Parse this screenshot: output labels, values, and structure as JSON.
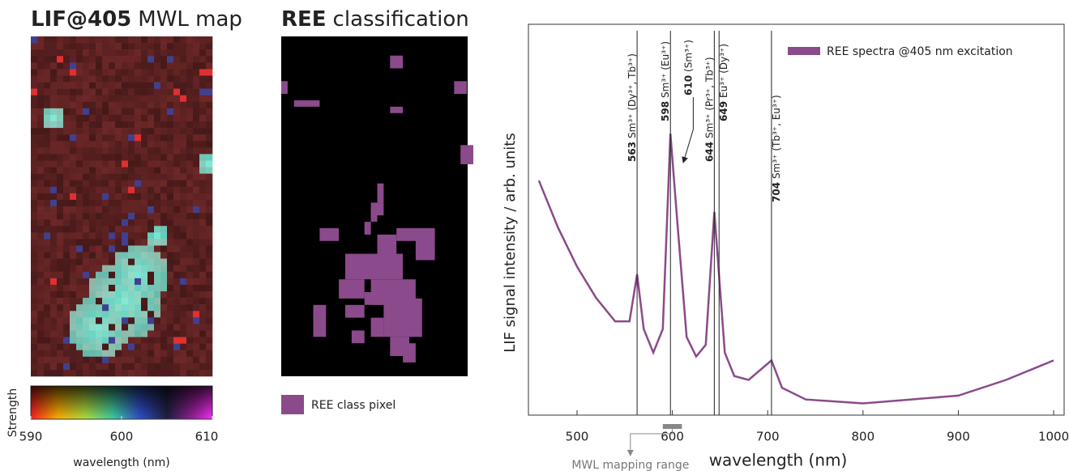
{
  "chart_data": [
    {
      "type": "heatmap",
      "title_bold": "LIF@405",
      "title": "MWL map",
      "colorbar_label": "Strength",
      "xlabel": "wavelength (nm)",
      "xlim": [
        590,
        610
      ],
      "xticks": [
        590,
        600,
        610
      ]
    },
    {
      "type": "classmap",
      "title_bold": "REE",
      "title": "classification",
      "legend": "REE class pixel",
      "color": "#8b4a8b"
    },
    {
      "type": "line",
      "xlabel": "wavelength (nm)",
      "ylabel": "LIF signal intensity / arb. units",
      "xlim": [
        449,
        1011
      ],
      "ylim": [
        0,
        100
      ],
      "xticks": [
        500,
        600,
        700,
        800,
        900,
        1000
      ],
      "legend_position": "upper right",
      "series": [
        {
          "name": "REE spectra @405 nm excitation",
          "color": "#8b4a8b",
          "x": [
            460,
            480,
            500,
            520,
            540,
            555,
            563,
            570,
            580,
            590,
            598,
            605,
            615,
            625,
            635,
            644,
            655,
            665,
            680,
            704,
            715,
            740,
            800,
            850,
            900,
            950,
            1000
          ],
          "values": [
            60,
            48,
            38,
            30,
            24,
            24,
            36,
            22,
            16,
            22,
            72,
            50,
            20,
            15,
            18,
            52,
            16,
            10,
            9,
            14,
            7,
            4,
            3,
            4,
            5,
            9,
            14
          ]
        }
      ],
      "annotations": [
        {
          "x": 563,
          "label": "Sm³⁺ (Dy³⁺, Tb³⁺)"
        },
        {
          "x": 598,
          "label": "Sm³⁺ (Eu³⁺)"
        },
        {
          "x": 610,
          "label": "(Sm³⁺)"
        },
        {
          "x": 644,
          "label": "Sm³⁺ (Pr³⁺, Tb³⁺)"
        },
        {
          "x": 649,
          "label": "Eu³⁺ (Dy³⁺)"
        },
        {
          "x": 704,
          "label": "Sm³⁺ (Tb³⁺, Eu³⁺)"
        }
      ],
      "mwl_range": [
        590,
        610
      ],
      "mwl_label": "MWL mapping range"
    }
  ]
}
